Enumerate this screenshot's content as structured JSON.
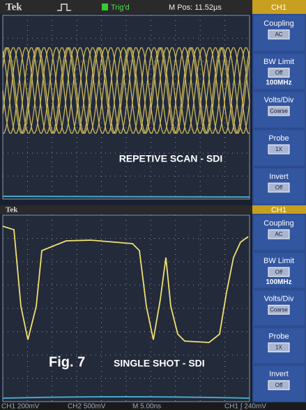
{
  "screens": [
    {
      "header": {
        "brand": "Tek",
        "trigger": "Trig'd",
        "position": "M Pos: 11.52µs",
        "channel": "CH1"
      },
      "menu": [
        {
          "label": "Coupling",
          "value": "AC"
        },
        {
          "label": "BW Limit",
          "value": "Off",
          "extra": "100MHz"
        },
        {
          "label": "Volts/Div",
          "value": "Coarse"
        },
        {
          "label": "Probe",
          "value": "1X"
        },
        {
          "label": "Invert",
          "value": "Off"
        }
      ],
      "caption": "REPETIVE SCAN - SDI"
    },
    {
      "header": {
        "brand": "Tek",
        "channel": "CH1"
      },
      "menu": [
        {
          "label": "Coupling",
          "value": "AC"
        },
        {
          "label": "BW Limit",
          "value": "Off",
          "extra": "100MHz"
        },
        {
          "label": "Volts/Div",
          "value": "Coarse"
        },
        {
          "label": "Probe",
          "value": "1X"
        },
        {
          "label": "Invert",
          "value": "Off"
        }
      ],
      "figure": "Fig. 7",
      "caption": "SINGLE SHOT - SDI"
    }
  ],
  "footer": [
    "CH1 200mV",
    "CH2 500mV",
    "M 5.00ns",
    "CH1 ∫ 240mV"
  ]
}
